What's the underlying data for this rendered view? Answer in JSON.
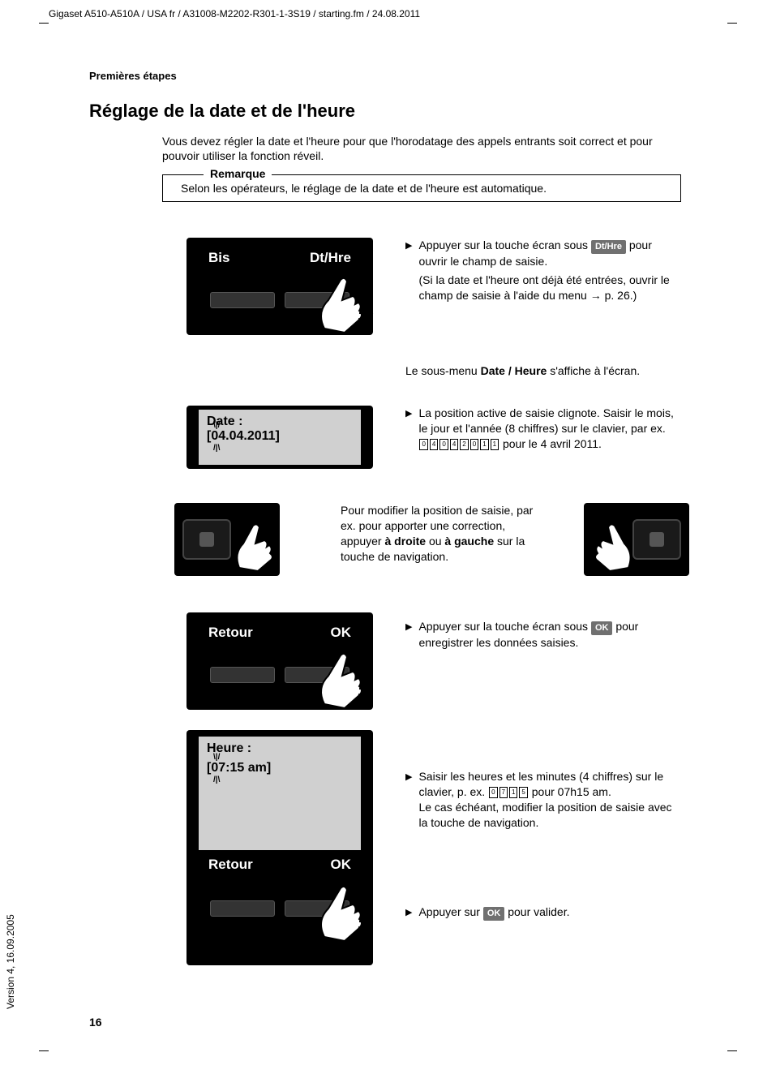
{
  "header": {
    "path": "Gigaset A510-A510A / USA fr / A31008-M2202-R301-1-3S19 / starting.fm / 24.08.2011"
  },
  "section": "Premières étapes",
  "title": "Réglage de la date et de l'heure",
  "intro": "Vous devez régler la date et l'heure pour que l'horodatage des appels entrants soit correct et pour pouvoir utiliser la fonction réveil.",
  "note": {
    "label": "Remarque",
    "text": "Selon les opérateurs, le réglage de la date et de l'heure est automatique."
  },
  "screen1": {
    "left": "Bis",
    "right": "Dt/Hre"
  },
  "instruction1": {
    "line1": "Appuyer sur la touche écran sous ",
    "badge1": "Dt/Hre",
    "line2": " pour ouvrir le champ de saisie.",
    "line3": "(Si la date et l'heure ont déjà été entrées, ouvrir le champ de saisie à l'aide du menu → p. 26.)"
  },
  "submenu_text": {
    "pre": "Le sous-menu ",
    "bold": "Date / Heure",
    "post": " s'affiche à l'écran."
  },
  "screen2": {
    "label": "Date :",
    "value": "[04.04.2011]"
  },
  "instruction2": {
    "line1": "La position active de saisie clignote. Saisir le mois, le jour et l'année (8 chiffres) sur le clavier, par ex.",
    "keys": [
      "0",
      "4",
      "0",
      "4",
      "2",
      "0",
      "1",
      "1"
    ],
    "line2": " pour le 4 avril 2011."
  },
  "nav_instruction": {
    "pre": "Pour modifier la position de saisie, par ex. pour apporter une correction, appuyer ",
    "bold1": "à droite",
    "mid": " ou ",
    "bold2": "à gauche",
    "post": " sur la touche de navigation."
  },
  "screen3": {
    "left": "Retour",
    "right": "OK"
  },
  "instruction3": {
    "line1": "Appuyer sur la touche écran sous ",
    "badge": "OK",
    "line2": " pour enregistrer les données saisies."
  },
  "screen4": {
    "label": "Heure :",
    "value": "[07:15 am]",
    "left": "Retour",
    "right": "OK"
  },
  "instruction4": {
    "line1": "Saisir les heures et les minutes (4 chiffres) sur le clavier, p. ex. ",
    "keys": [
      "0",
      "7",
      "1",
      "5"
    ],
    "line2": " pour 07h15 am.",
    "line3": "Le cas échéant, modifier la position de saisie avec la touche de navigation."
  },
  "instruction5": {
    "pre": "Appuyer sur ",
    "badge": "OK",
    "post": " pour valider."
  },
  "page_number": "16",
  "version": "Version 4, 16.09.2005"
}
